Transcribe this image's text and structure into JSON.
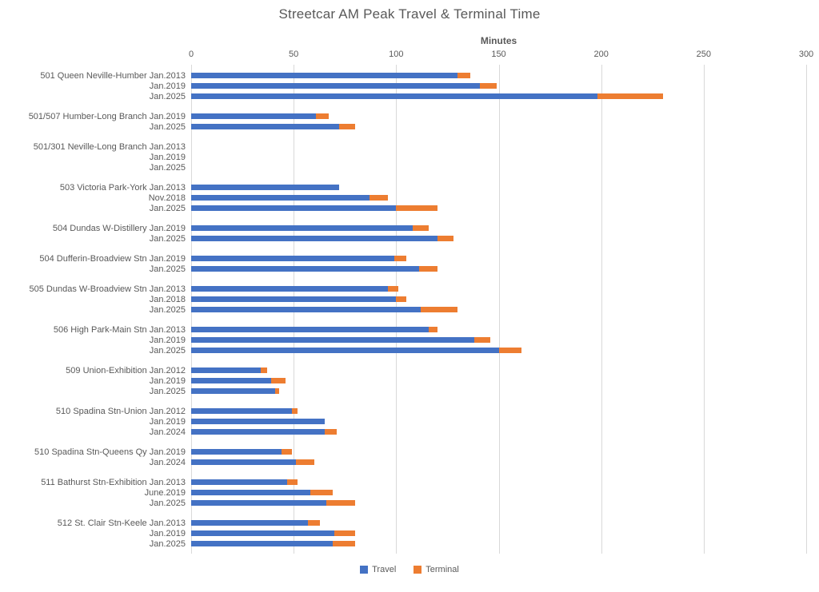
{
  "chart_data": {
    "type": "bar",
    "orientation": "horizontal",
    "stacked": true,
    "title": "Streetcar AM Peak Travel & Terminal Time",
    "xlabel": "Minutes",
    "xlim": [
      0,
      300
    ],
    "xticks": [
      0,
      50,
      100,
      150,
      200,
      250,
      300
    ],
    "grid": true,
    "legend": {
      "position": "bottom",
      "entries": [
        "Travel",
        "Terminal"
      ]
    },
    "colors": {
      "travel": "#4472C4",
      "terminal": "#ED7D31"
    },
    "series_names": [
      "Travel",
      "Terminal"
    ],
    "groups": [
      {
        "route": "501 Queen Neville-Humber",
        "rows": [
          {
            "date": "Jan.2013",
            "travel": 130,
            "terminal": 6
          },
          {
            "date": "Jan.2019",
            "travel": 141,
            "terminal": 8
          },
          {
            "date": "Jan.2025",
            "travel": 198,
            "terminal": 32
          }
        ]
      },
      {
        "route": "501/507 Humber-Long Branch",
        "rows": [
          {
            "date": "Jan.2019",
            "travel": 61,
            "terminal": 6
          },
          {
            "date": "Jan.2025",
            "travel": 72,
            "terminal": 8
          }
        ]
      },
      {
        "route": "501/301 Neville-Long Branch",
        "rows": [
          {
            "date": "Jan.2013",
            "travel": 0,
            "terminal": 0
          },
          {
            "date": "Jan.2019",
            "travel": 0,
            "terminal": 0
          },
          {
            "date": "Jan.2025",
            "travel": 0,
            "terminal": 0
          }
        ]
      },
      {
        "route": "503 Victoria Park-York",
        "rows": [
          {
            "date": "Jan.2013",
            "travel": 72,
            "terminal": 0
          },
          {
            "date": "Nov.2018",
            "travel": 87,
            "terminal": 9
          },
          {
            "date": "Jan.2025",
            "travel": 100,
            "terminal": 20
          }
        ]
      },
      {
        "route": "504 Dundas W-Distillery",
        "rows": [
          {
            "date": "Jan.2019",
            "travel": 108,
            "terminal": 8
          },
          {
            "date": "Jan.2025",
            "travel": 120,
            "terminal": 8
          }
        ]
      },
      {
        "route": "504 Dufferin-Broadview Stn",
        "rows": [
          {
            "date": "Jan.2019",
            "travel": 99,
            "terminal": 6
          },
          {
            "date": "Jan.2025",
            "travel": 111,
            "terminal": 9
          }
        ]
      },
      {
        "route": "505 Dundas W-Broadview Stn",
        "rows": [
          {
            "date": "Jan.2013",
            "travel": 96,
            "terminal": 5
          },
          {
            "date": "Jan.2018",
            "travel": 100,
            "terminal": 5
          },
          {
            "date": "Jan.2025",
            "travel": 112,
            "terminal": 18
          }
        ]
      },
      {
        "route": "506 High Park-Main Stn",
        "rows": [
          {
            "date": "Jan.2013",
            "travel": 116,
            "terminal": 4
          },
          {
            "date": "Jan.2019",
            "travel": 138,
            "terminal": 8
          },
          {
            "date": "Jan.2025",
            "travel": 150,
            "terminal": 11
          }
        ]
      },
      {
        "route": "509 Union-Exhibition",
        "rows": [
          {
            "date": "Jan.2012",
            "travel": 34,
            "terminal": 3
          },
          {
            "date": "Jan.2019",
            "travel": 39,
            "terminal": 7
          },
          {
            "date": "Jan.2025",
            "travel": 41,
            "terminal": 2
          }
        ]
      },
      {
        "route": "510 Spadina Stn-Union",
        "rows": [
          {
            "date": "Jan.2012",
            "travel": 49,
            "terminal": 3
          },
          {
            "date": "Jan.2019",
            "travel": 65,
            "terminal": 0
          },
          {
            "date": "Jan.2024",
            "travel": 65,
            "terminal": 6
          }
        ]
      },
      {
        "route": "510 Spadina Stn-Queens Qy",
        "rows": [
          {
            "date": "Jan.2019",
            "travel": 44,
            "terminal": 5
          },
          {
            "date": "Jan.2024",
            "travel": 51,
            "terminal": 9
          }
        ]
      },
      {
        "route": "511 Bathurst Stn-Exhibition",
        "rows": [
          {
            "date": "Jan.2013",
            "travel": 47,
            "terminal": 5
          },
          {
            "date": "June.2019",
            "travel": 58,
            "terminal": 11
          },
          {
            "date": "Jan.2025",
            "travel": 66,
            "terminal": 14
          }
        ]
      },
      {
        "route": "512 St. Clair Stn-Keele",
        "rows": [
          {
            "date": "Jan.2013",
            "travel": 57,
            "terminal": 6
          },
          {
            "date": "Jan.2019",
            "travel": 70,
            "terminal": 10
          },
          {
            "date": "Jan.2025",
            "travel": 69,
            "terminal": 11
          }
        ]
      }
    ]
  }
}
